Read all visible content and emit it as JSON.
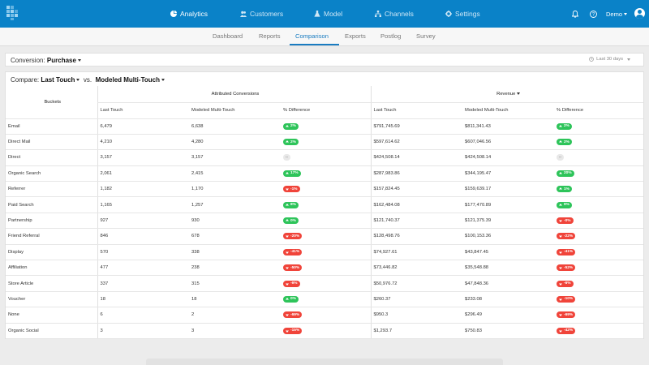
{
  "nav": {
    "items": [
      {
        "label": "Analytics",
        "icon": "pie-chart-icon",
        "active": true
      },
      {
        "label": "Customers",
        "icon": "users-icon",
        "active": false
      },
      {
        "label": "Model",
        "icon": "flask-icon",
        "active": false
      },
      {
        "label": "Channels",
        "icon": "network-icon",
        "active": false
      },
      {
        "label": "Settings",
        "icon": "gear-icon",
        "active": false
      }
    ],
    "user": "Demo",
    "accent": "#0a82c8"
  },
  "subnav": {
    "tabs": [
      "Dashboard",
      "Reports",
      "Comparison",
      "Exports",
      "Postlog",
      "Survey"
    ],
    "active": "Comparison"
  },
  "conversion": {
    "label": "Conversion:",
    "value": "Purchase",
    "date_range": "Last 30 days"
  },
  "compare": {
    "label": "Compare:",
    "left": "Last Touch",
    "vs": "vs.",
    "right": "Modeled Multi-Touch"
  },
  "table": {
    "buckets_header": "Buckets",
    "group_conversions": "Attributed Conversions",
    "group_revenue": "Revenue",
    "columns": [
      "Last Touch",
      "Modeled Multi-Touch",
      "% Difference"
    ],
    "rows": [
      {
        "bucket": "Email",
        "c_lt": "6,479",
        "c_mmt": "6,638",
        "c_diff": "2%",
        "c_dir": "up",
        "r_lt": "$791,745.69",
        "r_mmt": "$811,341.43",
        "r_diff": "2%",
        "r_dir": "up"
      },
      {
        "bucket": "Direct Mail",
        "c_lt": "4,210",
        "c_mmt": "4,280",
        "c_diff": "2%",
        "c_dir": "up",
        "r_lt": "$597,614.62",
        "r_mmt": "$607,046.56",
        "r_diff": "2%",
        "r_dir": "up"
      },
      {
        "bucket": "Direct",
        "c_lt": "3,157",
        "c_mmt": "3,157",
        "c_diff": "--",
        "c_dir": "neutral",
        "r_lt": "$424,508.14",
        "r_mmt": "$424,508.14",
        "r_diff": "--",
        "r_dir": "neutral"
      },
      {
        "bucket": "Organic Search",
        "c_lt": "2,061",
        "c_mmt": "2,415",
        "c_diff": "17%",
        "c_dir": "up",
        "r_lt": "$287,983.86",
        "r_mmt": "$344,195.47",
        "r_diff": "20%",
        "r_dir": "up"
      },
      {
        "bucket": "Referrer",
        "c_lt": "1,182",
        "c_mmt": "1,170",
        "c_diff": "-1%",
        "c_dir": "down",
        "r_lt": "$157,824.45",
        "r_mmt": "$159,639.17",
        "r_diff": "1%",
        "r_dir": "up"
      },
      {
        "bucket": "Paid Search",
        "c_lt": "1,165",
        "c_mmt": "1,257",
        "c_diff": "8%",
        "c_dir": "up",
        "r_lt": "$162,484.08",
        "r_mmt": "$177,470.89",
        "r_diff": "9%",
        "r_dir": "up"
      },
      {
        "bucket": "Partnership",
        "c_lt": "927",
        "c_mmt": "930",
        "c_diff": "0%",
        "c_dir": "up",
        "r_lt": "$121,740.37",
        "r_mmt": "$121,375.39",
        "r_diff": "-0%",
        "r_dir": "down"
      },
      {
        "bucket": "Friend Referral",
        "c_lt": "846",
        "c_mmt": "678",
        "c_diff": "-20%",
        "c_dir": "down",
        "r_lt": "$128,498.76",
        "r_mmt": "$100,153.36",
        "r_diff": "-22%",
        "r_dir": "down"
      },
      {
        "bucket": "Display",
        "c_lt": "570",
        "c_mmt": "338",
        "c_diff": "-41%",
        "c_dir": "down",
        "r_lt": "$74,927.61",
        "r_mmt": "$43,847.45",
        "r_diff": "-41%",
        "r_dir": "down"
      },
      {
        "bucket": "Affiliation",
        "c_lt": "477",
        "c_mmt": "238",
        "c_diff": "-50%",
        "c_dir": "down",
        "r_lt": "$73,446.82",
        "r_mmt": "$35,548.88",
        "r_diff": "-52%",
        "r_dir": "down"
      },
      {
        "bucket": "Store Article",
        "c_lt": "337",
        "c_mmt": "315",
        "c_diff": "-6%",
        "c_dir": "down",
        "r_lt": "$50,976.72",
        "r_mmt": "$47,848.36",
        "r_diff": "-6%",
        "r_dir": "down"
      },
      {
        "bucket": "Voucher",
        "c_lt": "18",
        "c_mmt": "18",
        "c_diff": "0%",
        "c_dir": "up",
        "r_lt": "$260.37",
        "r_mmt": "$233.08",
        "r_diff": "-10%",
        "r_dir": "down"
      },
      {
        "bucket": "None",
        "c_lt": "6",
        "c_mmt": "2",
        "c_diff": "-69%",
        "c_dir": "down",
        "r_lt": "$950.3",
        "r_mmt": "$296.49",
        "r_diff": "-69%",
        "r_dir": "down"
      },
      {
        "bucket": "Organic Social",
        "c_lt": "3",
        "c_mmt": "3",
        "c_diff": "-15%",
        "c_dir": "down",
        "r_lt": "$1,293.7",
        "r_mmt": "$750.83",
        "r_diff": "-42%",
        "r_dir": "down"
      }
    ]
  },
  "colors": {
    "positive": "#2ec45a",
    "negative": "#f0443a",
    "tab_accent": "#1a7cc1"
  }
}
